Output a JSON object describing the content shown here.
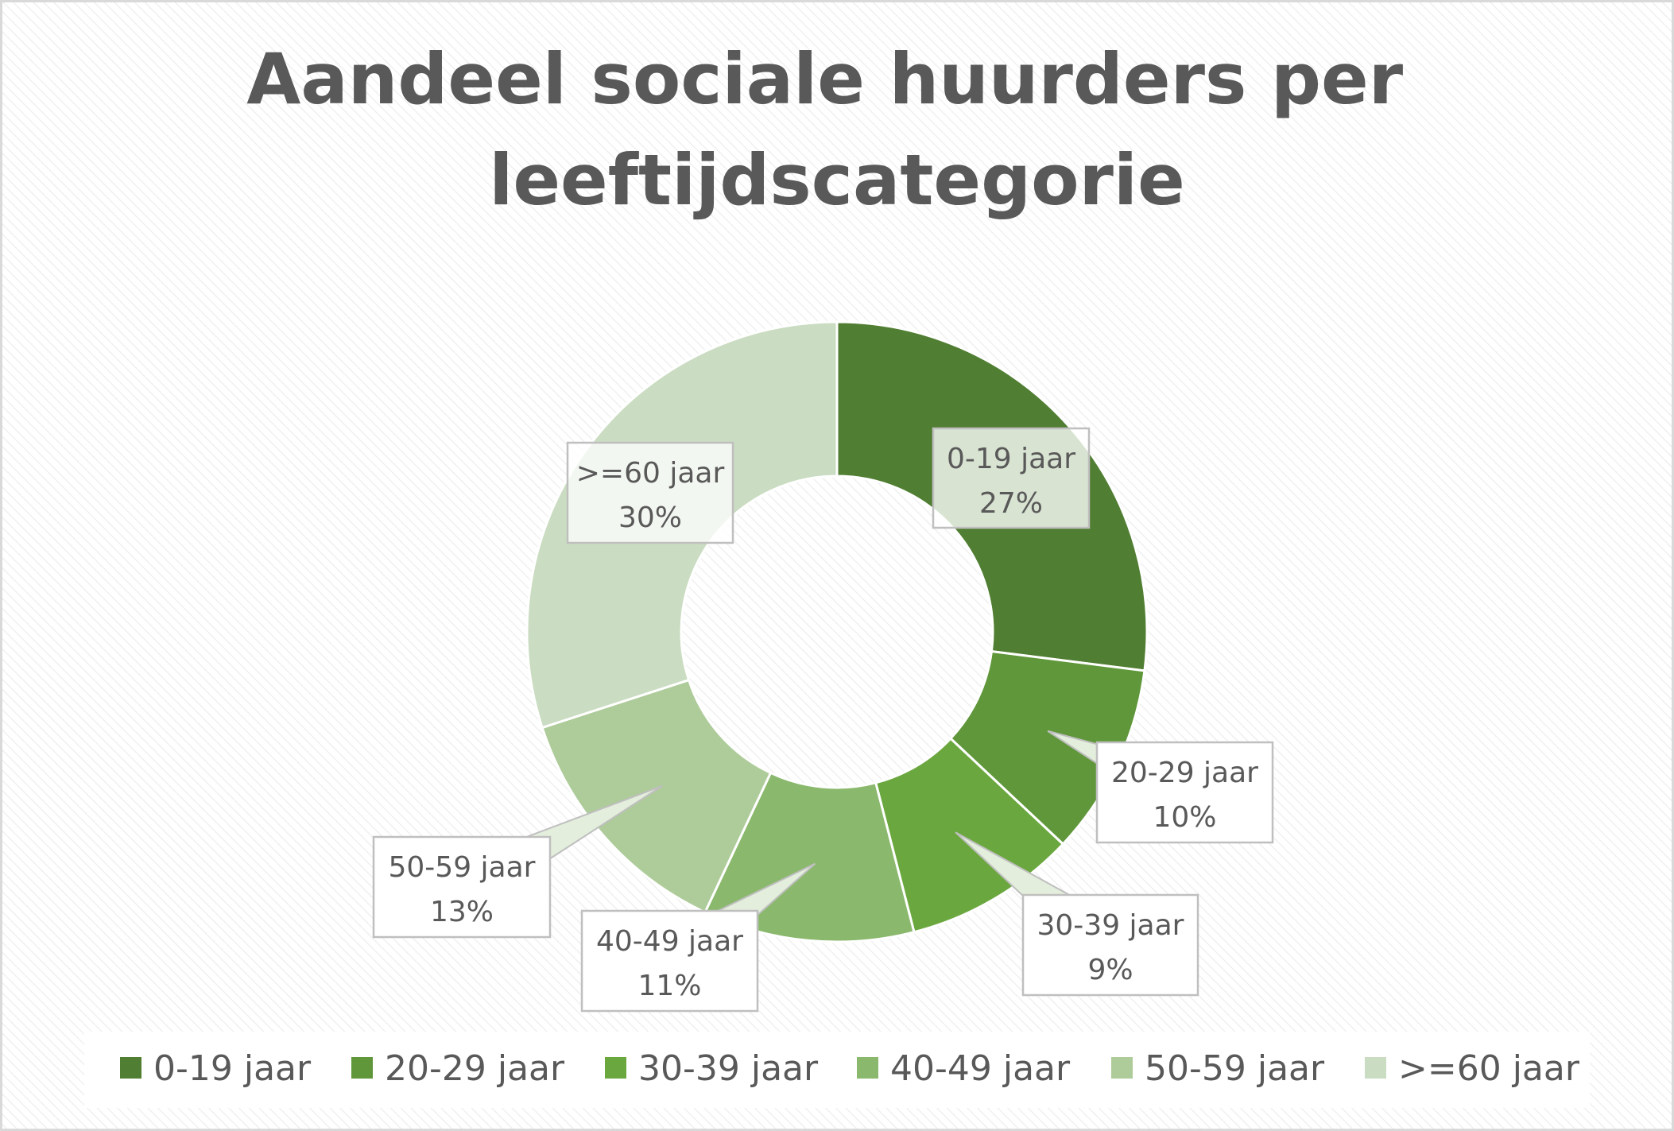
{
  "chart_data": {
    "type": "pie",
    "variant": "donut",
    "title": "Aandeel sociale huurders per leeftijdscategorie",
    "title_lines": [
      "Aandeel sociale huurders per",
      "leeftijdscategorie"
    ],
    "categories": [
      "0-19 jaar",
      "20-29 jaar",
      "30-39 jaar",
      "40-49 jaar",
      "50-59 jaar",
      ">=60 jaar"
    ],
    "values": [
      27,
      10,
      9,
      11,
      13,
      30
    ],
    "value_labels": [
      "27%",
      "10%",
      "9%",
      "11%",
      "13%",
      "30%"
    ],
    "colors": [
      "#507E32",
      "#5F973A",
      "#6BA73F",
      "#8AB86C",
      "#AECB9A",
      "#CADCC1"
    ],
    "legend": {
      "position": "bottom"
    }
  }
}
